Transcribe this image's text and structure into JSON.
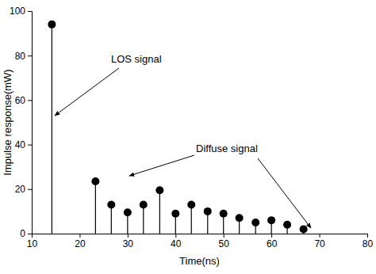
{
  "chart_data": {
    "type": "stem",
    "x_label": "Time(ns)",
    "y_label": "Impulse response(mW)",
    "annotations": [
      "LOS signal",
      "Diffuse signal"
    ],
    "x": [
      14.2,
      23.3,
      26.6,
      30,
      33.3,
      36.7,
      40,
      43.3,
      46.7,
      50,
      53.3,
      56.7,
      60,
      63.3,
      66.7
    ],
    "values": [
      94,
      23.5,
      13,
      9.5,
      13,
      19.5,
      9,
      13,
      10,
      9,
      7,
      5,
      6,
      4,
      2
    ],
    "xlim": [
      10,
      80
    ],
    "ylim": [
      0,
      100
    ],
    "xticks": [
      10,
      20,
      30,
      40,
      50,
      60,
      70,
      80
    ],
    "yticks": [
      0,
      20,
      40,
      60,
      80,
      100
    ],
    "color": "#000000",
    "marker": "circle"
  }
}
